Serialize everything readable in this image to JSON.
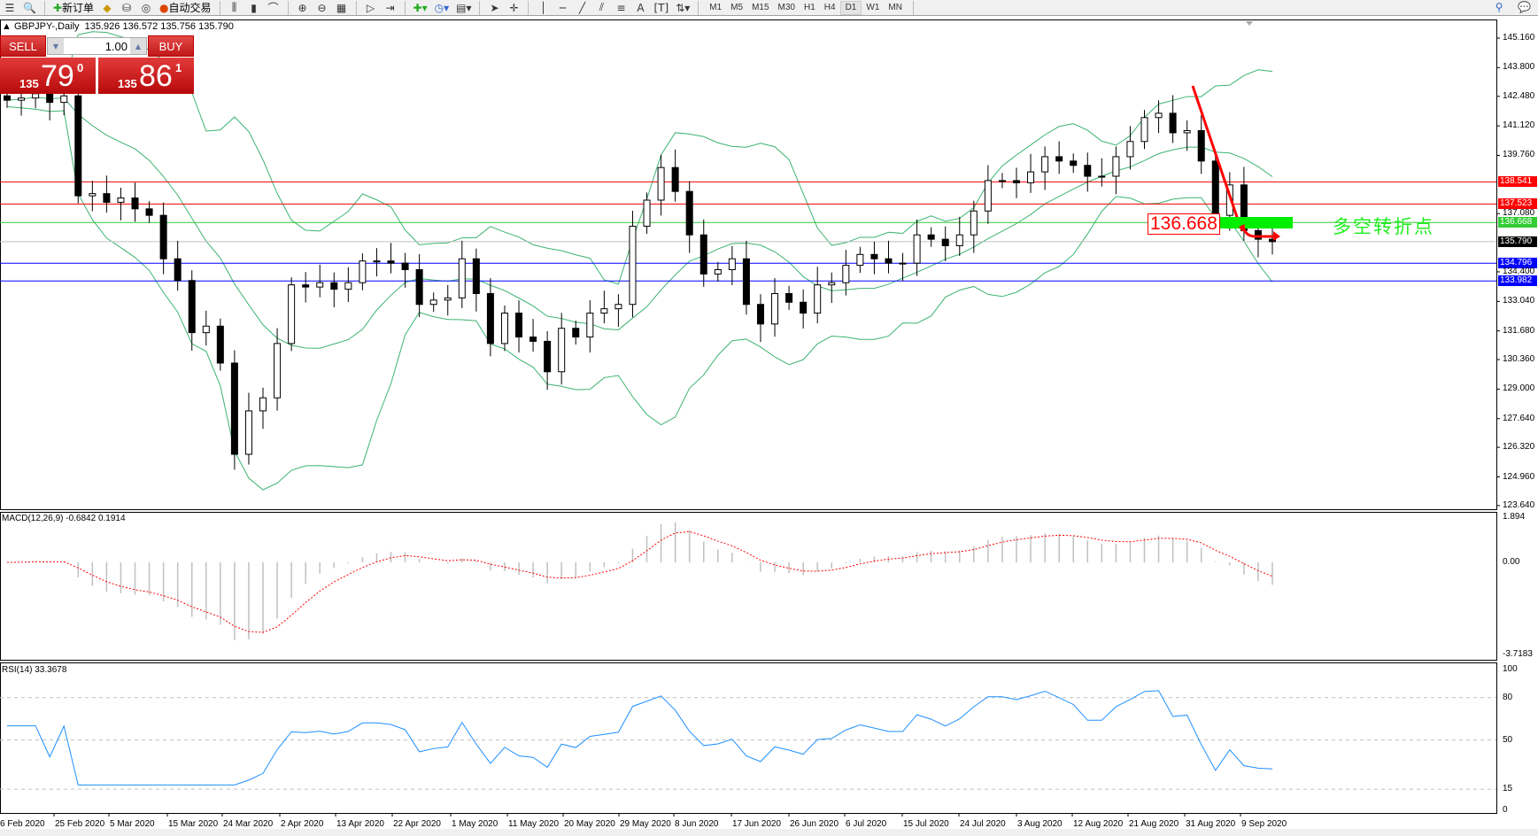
{
  "toolbar": {
    "new_order": "新订单",
    "auto_trading": "自动交易",
    "timeframes": [
      "M1",
      "M5",
      "M15",
      "M30",
      "H1",
      "H4",
      "D1",
      "W1",
      "MN"
    ],
    "active_timeframe": "D1"
  },
  "symbol": {
    "title": "GBPJPY-,Daily",
    "ohlc": "135.926 136.572 135.756 135.790"
  },
  "trade_panel": {
    "sell_label": "SELL",
    "buy_label": "BUY",
    "volume": "1.00",
    "bid_prefix": "135",
    "bid_main": "79",
    "bid_sup": "0",
    "ask_prefix": "135",
    "ask_main": "86",
    "ask_sup": "1"
  },
  "colors": {
    "up_fill": "#ffffff",
    "down_fill": "#000000",
    "bands": "#3cb371",
    "macd_hist": "#c0c0c0",
    "macd_signal": "#ff0000",
    "rsi": "#1e90ff",
    "accent_red": "#ff0000"
  },
  "price_axis": [
    "145.160",
    "143.800",
    "142.480",
    "141.120",
    "139.760",
    "137.080",
    "134.400",
    "133.040",
    "131.680",
    "130.360",
    "129.000",
    "127.640",
    "126.320",
    "124.960",
    "123.640"
  ],
  "price_lines": [
    {
      "value": "138.541",
      "color": "#ff0000"
    },
    {
      "value": "137.523",
      "color": "#ff0000"
    },
    {
      "value": "136.668",
      "color": "#33cc33"
    },
    {
      "value": "135.790",
      "color": "#000000",
      "line": "#c0c0c0"
    },
    {
      "value": "134.796",
      "color": "#0000ff"
    },
    {
      "value": "133.982",
      "color": "#0000ff"
    }
  ],
  "annotation": {
    "level": "136.668",
    "text": "多空转折点"
  },
  "macd": {
    "label": "MACD(12,26,9) -0.6842 0.1914",
    "axis": [
      "1.894",
      "0.00",
      "-3.7183"
    ]
  },
  "rsi": {
    "label": "RSI(14) 33.3678",
    "axis": [
      "100",
      "80",
      "50",
      "15",
      "0"
    ]
  },
  "chart_data": {
    "type": "candlestick",
    "symbol": "GBPJPY",
    "timeframe": "Daily",
    "x_tick_labels": [
      "6 Feb 2020",
      "25 Feb 2020",
      "5 Mar 2020",
      "15 Mar 2020",
      "24 Mar 2020",
      "2 Apr 2020",
      "13 Apr 2020",
      "22 Apr 2020",
      "1 May 2020",
      "11 May 2020",
      "20 May 2020",
      "29 May 2020",
      "8 Jun 2020",
      "17 Jun 2020",
      "26 Jun 2020",
      "6 Jul 2020",
      "15 Jul 2020",
      "24 Jul 2020",
      "3 Aug 2020",
      "12 Aug 2020",
      "21 Aug 2020",
      "31 Aug 2020",
      "9 Sep 2020"
    ],
    "ylim": [
      123.64,
      145.16
    ],
    "closes": [
      142.3,
      142.4,
      142.6,
      142.2,
      142.5,
      137.9,
      138.0,
      137.6,
      137.8,
      137.3,
      137.0,
      135.0,
      134.0,
      131.6,
      131.9,
      130.2,
      126.0,
      128.0,
      128.6,
      131.1,
      133.8,
      133.7,
      133.9,
      133.6,
      133.9,
      134.9,
      134.9,
      134.8,
      134.5,
      132.9,
      133.1,
      133.2,
      135.0,
      133.4,
      131.1,
      132.5,
      131.4,
      131.2,
      129.8,
      131.8,
      131.4,
      132.5,
      132.7,
      132.9,
      136.5,
      137.7,
      139.2,
      138.1,
      136.1,
      134.3,
      134.5,
      135.0,
      132.9,
      132.0,
      133.4,
      133.0,
      132.5,
      133.8,
      133.9,
      134.7,
      135.2,
      135.0,
      134.8,
      134.8,
      136.1,
      135.9,
      135.6,
      136.1,
      137.2,
      138.6,
      138.6,
      138.5,
      139.0,
      139.7,
      139.5,
      139.3,
      138.8,
      138.8,
      139.7,
      140.4,
      141.5,
      141.7,
      140.8,
      140.9,
      139.5,
      137.0,
      138.4,
      136.3,
      135.9,
      135.79
    ]
  }
}
